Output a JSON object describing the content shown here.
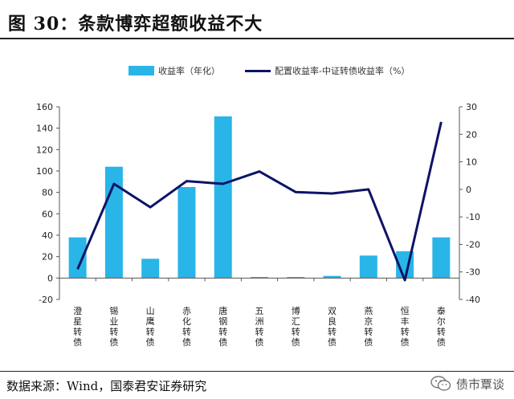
{
  "title": "图 30：条款博弈超额收益不大",
  "source": "数据来源：Wind，国泰君安证券研究",
  "watermark": "债市覃谈",
  "chart_data": {
    "type": "bar+line",
    "categories": [
      "澄星转债",
      "锡业转债",
      "山鹰转债",
      "赤化转债",
      "唐钢转债",
      "五洲转债",
      "博汇转债",
      "双良转债",
      "燕京转债",
      "恒丰转债",
      "泰尔转债"
    ],
    "series": [
      {
        "name": "收益率（年化）",
        "type": "bar",
        "axis": "left",
        "color": "#29b5e8",
        "values": [
          38,
          104,
          18,
          85,
          151,
          1,
          1,
          2,
          21,
          25,
          38
        ]
      },
      {
        "name": "配置收益率-中证转债收益率（%）",
        "type": "line",
        "axis": "right",
        "color": "#0d1466",
        "values": [
          -29,
          2,
          -6.5,
          3,
          2,
          6.5,
          -1,
          -1.5,
          0,
          -33,
          24.5
        ]
      }
    ],
    "y_left": {
      "ylim": [
        -20,
        160
      ],
      "ticks": [
        -20,
        0,
        20,
        40,
        60,
        80,
        100,
        120,
        140,
        160
      ]
    },
    "y_right": {
      "ylim": [
        -40,
        30
      ],
      "ticks": [
        -40,
        -30,
        -20,
        -10,
        0,
        10,
        20,
        30
      ]
    },
    "legend_position": "top-center",
    "grid": false
  }
}
